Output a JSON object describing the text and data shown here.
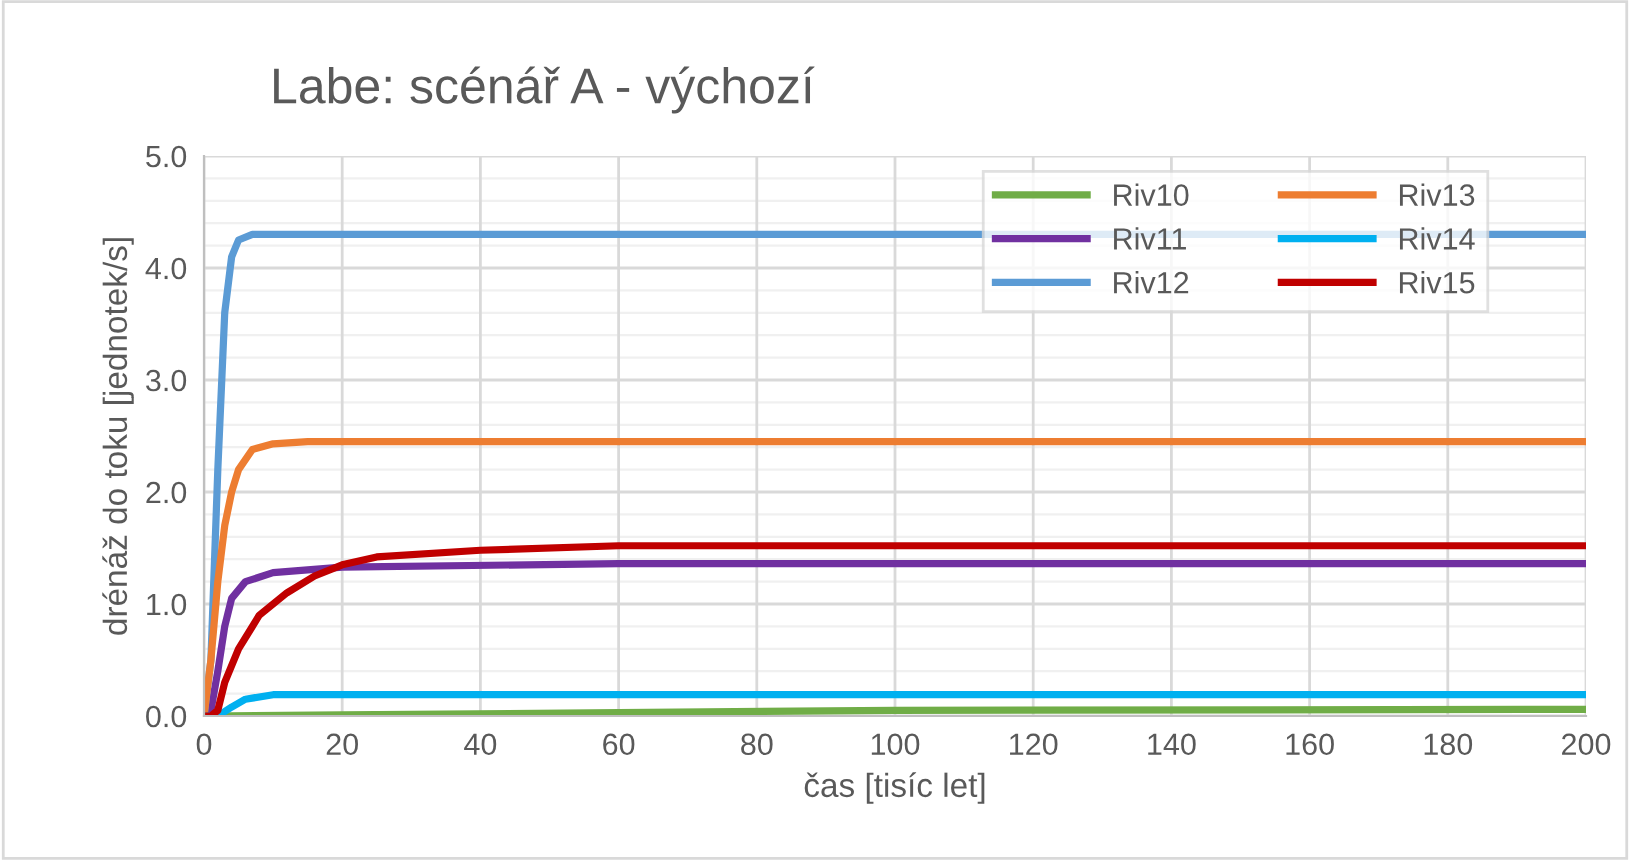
{
  "chart_data": {
    "type": "line",
    "title": "Labe: scénář A - výchozí",
    "xlabel": "čas [tisíc let]",
    "ylabel": "drénáž do toku [jednotek/s]",
    "xlim": [
      0,
      200
    ],
    "xticks": [
      0,
      20,
      40,
      60,
      80,
      100,
      120,
      140,
      160,
      180,
      200
    ],
    "ylim": [
      0,
      5
    ],
    "yticks": [
      {
        "value": 0,
        "label": "0.0"
      },
      {
        "value": 1,
        "label": "1.0"
      },
      {
        "value": 2,
        "label": "2.0"
      },
      {
        "value": 3,
        "label": "3.0"
      },
      {
        "value": 4,
        "label": "4.0"
      },
      {
        "value": 5,
        "label": "5.0"
      }
    ],
    "grid": true,
    "legend": "top right",
    "marker": "none",
    "line_style": "solid",
    "series": [
      {
        "name": "Riv10",
        "color": "#70ad47",
        "x": [
          0,
          20,
          60,
          100,
          200
        ],
        "values": [
          0,
          0.01,
          0.03,
          0.05,
          0.06
        ]
      },
      {
        "name": "Riv11",
        "color": "#7030a0",
        "x": [
          0,
          1,
          2,
          3,
          4,
          6,
          10,
          20,
          60,
          200
        ],
        "values": [
          0,
          0.05,
          0.4,
          0.8,
          1.05,
          1.2,
          1.28,
          1.33,
          1.36,
          1.36
        ]
      },
      {
        "name": "Riv12",
        "color": "#5b9bd5",
        "x": [
          0,
          1,
          2,
          3,
          4,
          5,
          7,
          200
        ],
        "values": [
          0,
          0.5,
          2.2,
          3.6,
          4.1,
          4.25,
          4.3,
          4.3
        ]
      },
      {
        "name": "Riv13",
        "color": "#ed7d31",
        "x": [
          0,
          1,
          2,
          3,
          4,
          5,
          7,
          10,
          15,
          200
        ],
        "values": [
          0,
          0.5,
          1.2,
          1.7,
          2.0,
          2.2,
          2.38,
          2.43,
          2.45,
          2.45
        ]
      },
      {
        "name": "Riv14",
        "color": "#00b0f0",
        "x": [
          0,
          2,
          4,
          6,
          10,
          200
        ],
        "values": [
          0,
          0,
          0.08,
          0.15,
          0.19,
          0.19
        ]
      },
      {
        "name": "Riv15",
        "color": "#c00000",
        "x": [
          0,
          1,
          2,
          3,
          5,
          8,
          12,
          16,
          20,
          25,
          40,
          60,
          200
        ],
        "values": [
          0,
          0,
          0.05,
          0.3,
          0.6,
          0.9,
          1.1,
          1.25,
          1.35,
          1.42,
          1.48,
          1.52,
          1.52
        ]
      }
    ]
  }
}
